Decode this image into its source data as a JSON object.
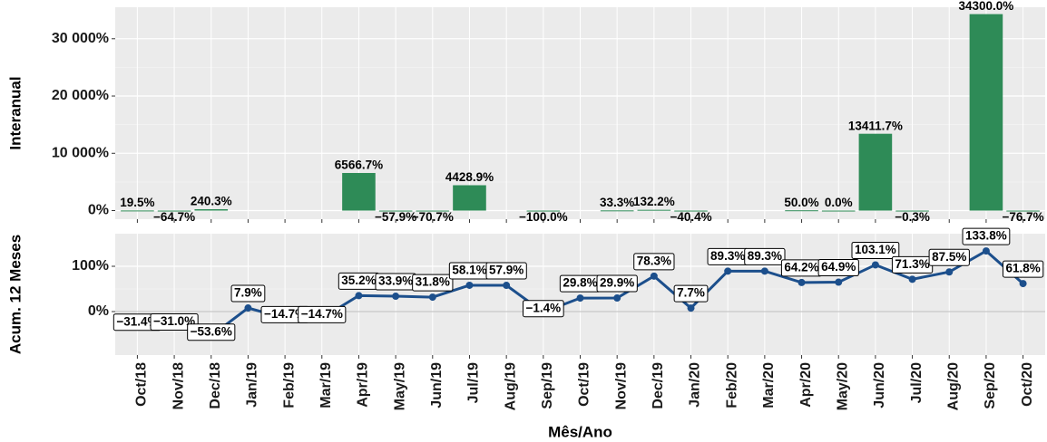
{
  "chart_data": [
    {
      "type": "bar",
      "y_label": "Interanual",
      "color": "#2e8b57",
      "grid": true,
      "categories": [
        "Oct/18",
        "Nov/18",
        "Dec/18",
        "Jan/19",
        "Feb/19",
        "Mar/19",
        "Apr/19",
        "May/19",
        "Jun/19",
        "Jul/19",
        "Aug/19",
        "Sep/19",
        "Oct/19",
        "Nov/19",
        "Dec/19",
        "Jan/20",
        "Feb/20",
        "Mar/20",
        "Apr/20",
        "May/20",
        "Jun/20",
        "Jul/20",
        "Aug/20",
        "Sep/20",
        "Oct/20"
      ],
      "values": [
        19.5,
        -64.7,
        240.3,
        null,
        null,
        null,
        6566.7,
        -57.9,
        -70.7,
        4428.9,
        null,
        -100.0,
        null,
        33.3,
        132.2,
        -40.4,
        null,
        null,
        50.0,
        0.0,
        13411.7,
        -0.3,
        null,
        34300.0,
        -76.7
      ],
      "value_labels": [
        "19.5%",
        "−64.7%",
        "240.3%",
        null,
        null,
        null,
        "6566.7%",
        "−57.9%",
        "−70.7%",
        "4428.9%",
        null,
        "−100.0%",
        null,
        "33.3%",
        "132.2%",
        "−40.4%",
        null,
        null,
        "50.0%",
        "0.0%",
        "13411.7%",
        "−0.3%",
        null,
        "34300.0%",
        "−76.7%"
      ],
      "ylim": [
        -1500,
        35500
      ],
      "yticks": [
        {
          "value": 0,
          "label": "0%"
        },
        {
          "value": 10000,
          "label": "10 000%"
        },
        {
          "value": 20000,
          "label": "20 000%"
        },
        {
          "value": 30000,
          "label": "30 000%"
        }
      ]
    },
    {
      "type": "line",
      "y_label": "Acum. 12 Meses",
      "x_label": "Mês/Ano",
      "color": "#1c4f8c",
      "grid": true,
      "categories": [
        "Oct/18",
        "Nov/18",
        "Dec/18",
        "Jan/19",
        "Feb/19",
        "Mar/19",
        "Apr/19",
        "May/19",
        "Jun/19",
        "Jul/19",
        "Aug/19",
        "Sep/19",
        "Oct/19",
        "Nov/19",
        "Dec/19",
        "Jan/20",
        "Feb/20",
        "Mar/20",
        "Apr/20",
        "May/20",
        "Jun/20",
        "Jul/20",
        "Aug/20",
        "Sep/20",
        "Oct/20"
      ],
      "values": [
        -31.4,
        -31.0,
        -53.6,
        7.9,
        -14.7,
        -14.7,
        35.2,
        33.9,
        31.8,
        58.1,
        57.9,
        -1.4,
        29.8,
        29.9,
        78.3,
        7.7,
        89.3,
        89.3,
        64.2,
        64.9,
        103.1,
        71.3,
        87.5,
        133.8,
        61.8
      ],
      "value_labels": [
        "−31.4%",
        "−31.0%",
        "−53.6%",
        "7.9%",
        "−14.7%",
        "−14.7%",
        "35.2%",
        "33.9%",
        "31.8%",
        "58.1%",
        "57.9%",
        "−1.4%",
        "29.8%",
        "29.9%",
        "78.3%",
        "7.7%",
        "89.3%",
        "89.3%",
        "64.2%",
        "64.9%",
        "103.1%",
        "71.3%",
        "87.5%",
        "133.8%",
        "61.8%"
      ],
      "ylim": [
        -96,
        172
      ],
      "yticks": [
        {
          "value": 0,
          "label": "0%"
        },
        {
          "value": 100,
          "label": "100%"
        }
      ]
    }
  ]
}
